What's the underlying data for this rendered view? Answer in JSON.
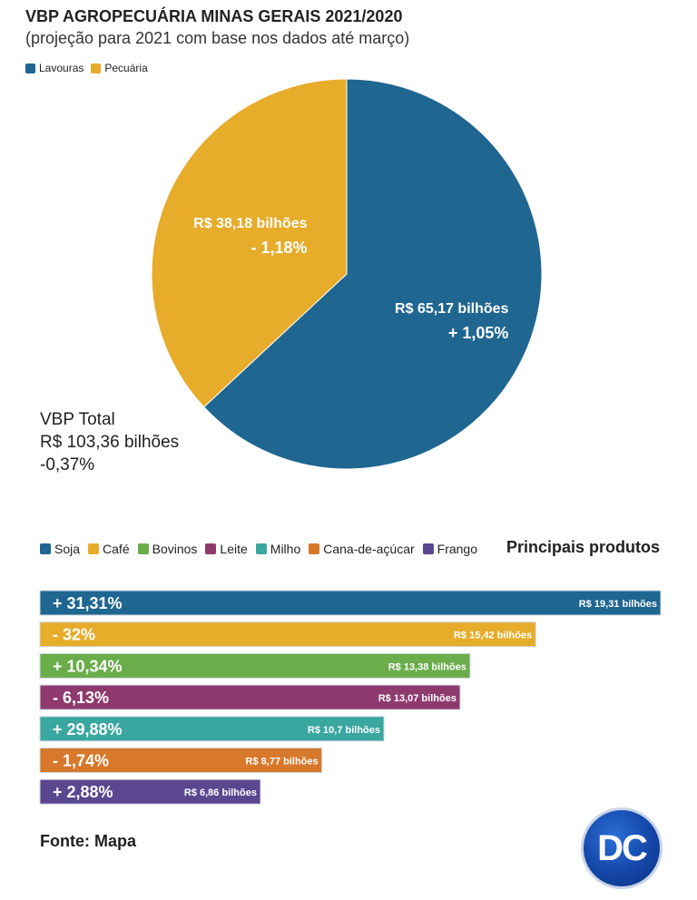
{
  "header": {
    "title": "VBP AGROPECUÁRIA MINAS GERAIS 2021/2020",
    "subtitle": "(projeção para 2021 com base nos dados até março)"
  },
  "colors": {
    "lavouras": "#1f6690",
    "pecuaria": "#e6ac2a",
    "soja": "#1f6690",
    "cafe": "#e6ac2a",
    "bovinos": "#6aad4a",
    "leite": "#8e3a6e",
    "milho": "#3aa7a1",
    "cana": "#d8782a",
    "frango": "#5a4790"
  },
  "total": {
    "line1": "VBP Total",
    "line2": "R$ 103,36 bilhões",
    "line3": "-0,37%"
  },
  "products_title": "Principais produtos",
  "source": "Fonte: Mapa",
  "logo_text": "DC",
  "chart_data": [
    {
      "type": "pie",
      "legend": [
        "Lavouras",
        "Pecuária"
      ],
      "legend_position": "top-left",
      "slices": [
        {
          "name": "Lavouras",
          "value": 65.17,
          "label": "R$ 65,17 bilhões",
          "change": "+ 1,05%",
          "color": "#1f6690"
        },
        {
          "name": "Pecuária",
          "value": 38.18,
          "label": "R$ 38,18 bilhões",
          "change": "- 1,18%",
          "color": "#e6ac2a"
        }
      ]
    },
    {
      "type": "bar",
      "orientation": "horizontal",
      "legend_position": "top-left",
      "categories": [
        "Soja",
        "Café",
        "Bovinos",
        "Leite",
        "Milho",
        "Cana-de-açúcar",
        "Frango"
      ],
      "values": [
        19.31,
        15.42,
        13.38,
        13.07,
        10.7,
        8.77,
        6.86
      ],
      "value_labels": [
        "R$ 19,31 bilhões",
        "R$ 15,42 bilhões",
        "R$ 13,38 bilhões",
        "R$ 13,07 bilhões",
        "R$ 10,7 bilhões",
        "R$ 8,77 bilhões",
        "R$ 6,86 bilhões"
      ],
      "changes": [
        "+ 31,31%",
        "- 32%",
        "+ 10,34%",
        "- 6,13%",
        "+ 29,88%",
        "- 1,74%",
        "+ 2,88%"
      ],
      "colors": [
        "#1f6690",
        "#e6ac2a",
        "#6aad4a",
        "#8e3a6e",
        "#3aa7a1",
        "#d8782a",
        "#5a4790"
      ],
      "xlim": [
        0,
        19.31
      ]
    }
  ]
}
